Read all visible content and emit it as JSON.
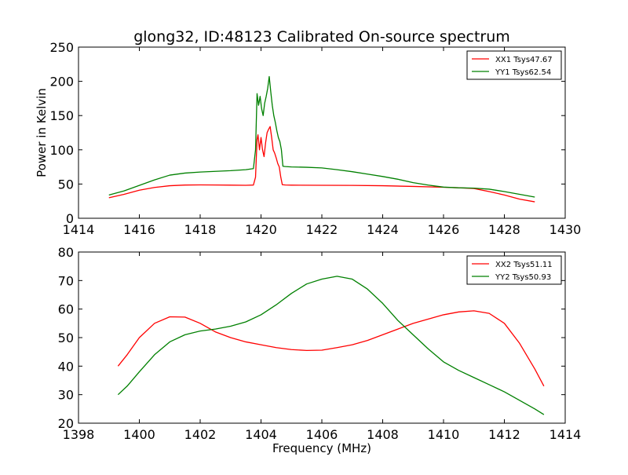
{
  "chart_data": {
    "title": "glong32, ID:48123 Calibrated On-source spectrum",
    "xlabel": "Frequency (MHz)",
    "charts": [
      {
        "type": "line",
        "ylabel": "Power in Kelvin",
        "xlim": [
          1414,
          1430
        ],
        "ylim": [
          0,
          250
        ],
        "xticks": [
          1414,
          1416,
          1418,
          1420,
          1422,
          1424,
          1426,
          1428,
          1430
        ],
        "yticks": [
          0,
          50,
          100,
          150,
          200,
          250
        ],
        "legend_position": "top-right",
        "grid": false,
        "series": [
          {
            "name": "XX1 Tsys47.67",
            "color": "#ff0000",
            "points": [
              [
                1415.0,
                30
              ],
              [
                1415.5,
                35
              ],
              [
                1416.0,
                41
              ],
              [
                1416.5,
                45
              ],
              [
                1417.0,
                47.5
              ],
              [
                1417.5,
                48.5
              ],
              [
                1418.0,
                48.7
              ],
              [
                1418.5,
                48.6
              ],
              [
                1419.0,
                48.4
              ],
              [
                1419.5,
                48.2
              ],
              [
                1419.75,
                48.5
              ],
              [
                1419.82,
                60
              ],
              [
                1419.87,
                115
              ],
              [
                1419.9,
                122
              ],
              [
                1419.95,
                100
              ],
              [
                1420.0,
                118
              ],
              [
                1420.05,
                100
              ],
              [
                1420.1,
                90
              ],
              [
                1420.15,
                110
              ],
              [
                1420.2,
                125
              ],
              [
                1420.25,
                130
              ],
              [
                1420.3,
                134
              ],
              [
                1420.35,
                118
              ],
              [
                1420.4,
                100
              ],
              [
                1420.45,
                95
              ],
              [
                1420.5,
                88
              ],
              [
                1420.55,
                80
              ],
              [
                1420.6,
                75
              ],
              [
                1420.65,
                60
              ],
              [
                1420.7,
                49
              ],
              [
                1420.8,
                48.6
              ],
              [
                1421.0,
                48.4
              ],
              [
                1422.0,
                48.2
              ],
              [
                1423.0,
                48.0
              ],
              [
                1424.0,
                47.5
              ],
              [
                1425.0,
                46.5
              ],
              [
                1426.0,
                45.3
              ],
              [
                1426.5,
                44.5
              ],
              [
                1427.0,
                43.5
              ],
              [
                1427.5,
                39
              ],
              [
                1428.0,
                34
              ],
              [
                1428.5,
                28
              ],
              [
                1429.0,
                24
              ]
            ]
          },
          {
            "name": "YY1 Tsys62.54",
            "color": "#008000",
            "points": [
              [
                1415.0,
                34
              ],
              [
                1415.5,
                40
              ],
              [
                1416.0,
                48
              ],
              [
                1416.5,
                56
              ],
              [
                1417.0,
                63
              ],
              [
                1417.5,
                66
              ],
              [
                1418.0,
                67.5
              ],
              [
                1418.5,
                68.5
              ],
              [
                1419.0,
                69.5
              ],
              [
                1419.5,
                71
              ],
              [
                1419.75,
                72.5
              ],
              [
                1419.82,
                100
              ],
              [
                1419.87,
                182
              ],
              [
                1419.92,
                165
              ],
              [
                1419.97,
                178
              ],
              [
                1420.02,
                160
              ],
              [
                1420.07,
                150
              ],
              [
                1420.12,
                168
              ],
              [
                1420.17,
                178
              ],
              [
                1420.22,
                190
              ],
              [
                1420.27,
                207
              ],
              [
                1420.32,
                185
              ],
              [
                1420.37,
                165
              ],
              [
                1420.42,
                150
              ],
              [
                1420.47,
                140
              ],
              [
                1420.52,
                128
              ],
              [
                1420.57,
                118
              ],
              [
                1420.62,
                112
              ],
              [
                1420.67,
                100
              ],
              [
                1420.72,
                76
              ],
              [
                1420.8,
                75.5
              ],
              [
                1421.0,
                75
              ],
              [
                1421.5,
                74.5
              ],
              [
                1422.0,
                73.5
              ],
              [
                1422.5,
                71
              ],
              [
                1423.0,
                68
              ],
              [
                1423.5,
                64.5
              ],
              [
                1424.0,
                61
              ],
              [
                1424.5,
                57
              ],
              [
                1425.0,
                52
              ],
              [
                1425.5,
                48.5
              ],
              [
                1426.0,
                45.5
              ],
              [
                1426.5,
                44.5
              ],
              [
                1427.0,
                44
              ],
              [
                1427.5,
                42.5
              ],
              [
                1428.0,
                39
              ],
              [
                1428.5,
                35
              ],
              [
                1429.0,
                31
              ]
            ]
          }
        ]
      },
      {
        "type": "line",
        "xlim": [
          1398,
          1414
        ],
        "ylim": [
          20,
          80
        ],
        "xticks": [
          1398,
          1400,
          1402,
          1404,
          1406,
          1408,
          1410,
          1412,
          1414
        ],
        "yticks": [
          20,
          30,
          40,
          50,
          60,
          70,
          80
        ],
        "legend_position": "top-right",
        "grid": false,
        "series": [
          {
            "name": "XX2 Tsys51.11",
            "color": "#ff0000",
            "points": [
              [
                1399.3,
                40
              ],
              [
                1399.6,
                44
              ],
              [
                1400.0,
                50
              ],
              [
                1400.5,
                55
              ],
              [
                1401.0,
                57.3
              ],
              [
                1401.5,
                57.2
              ],
              [
                1402.0,
                55
              ],
              [
                1402.5,
                52
              ],
              [
                1403.0,
                50
              ],
              [
                1403.5,
                48.5
              ],
              [
                1404.0,
                47.5
              ],
              [
                1404.5,
                46.5
              ],
              [
                1405.0,
                45.8
              ],
              [
                1405.5,
                45.5
              ],
              [
                1406.0,
                45.6
              ],
              [
                1406.5,
                46.5
              ],
              [
                1407.0,
                47.5
              ],
              [
                1407.5,
                49
              ],
              [
                1408.0,
                51
              ],
              [
                1408.5,
                53
              ],
              [
                1409.0,
                55
              ],
              [
                1409.5,
                56.5
              ],
              [
                1410.0,
                58
              ],
              [
                1410.5,
                59
              ],
              [
                1411.0,
                59.4
              ],
              [
                1411.5,
                58.5
              ],
              [
                1412.0,
                55
              ],
              [
                1412.5,
                48
              ],
              [
                1413.0,
                39
              ],
              [
                1413.3,
                33
              ]
            ]
          },
          {
            "name": "YY2 Tsys50.93",
            "color": "#008000",
            "points": [
              [
                1399.3,
                30
              ],
              [
                1399.6,
                33
              ],
              [
                1400.0,
                38
              ],
              [
                1400.5,
                44
              ],
              [
                1401.0,
                48.5
              ],
              [
                1401.5,
                51
              ],
              [
                1402.0,
                52.3
              ],
              [
                1402.5,
                53
              ],
              [
                1403.0,
                54
              ],
              [
                1403.5,
                55.5
              ],
              [
                1404.0,
                58
              ],
              [
                1404.5,
                61.5
              ],
              [
                1405.0,
                65.5
              ],
              [
                1405.5,
                68.8
              ],
              [
                1406.0,
                70.5
              ],
              [
                1406.5,
                71.5
              ],
              [
                1407.0,
                70.5
              ],
              [
                1407.5,
                67
              ],
              [
                1408.0,
                62
              ],
              [
                1408.5,
                56
              ],
              [
                1409.0,
                51
              ],
              [
                1409.5,
                46
              ],
              [
                1410.0,
                41.5
              ],
              [
                1410.5,
                38.5
              ],
              [
                1411.0,
                36
              ],
              [
                1411.5,
                33.5
              ],
              [
                1412.0,
                31
              ],
              [
                1412.5,
                28
              ],
              [
                1413.0,
                25
              ],
              [
                1413.3,
                23
              ]
            ]
          }
        ]
      }
    ]
  }
}
